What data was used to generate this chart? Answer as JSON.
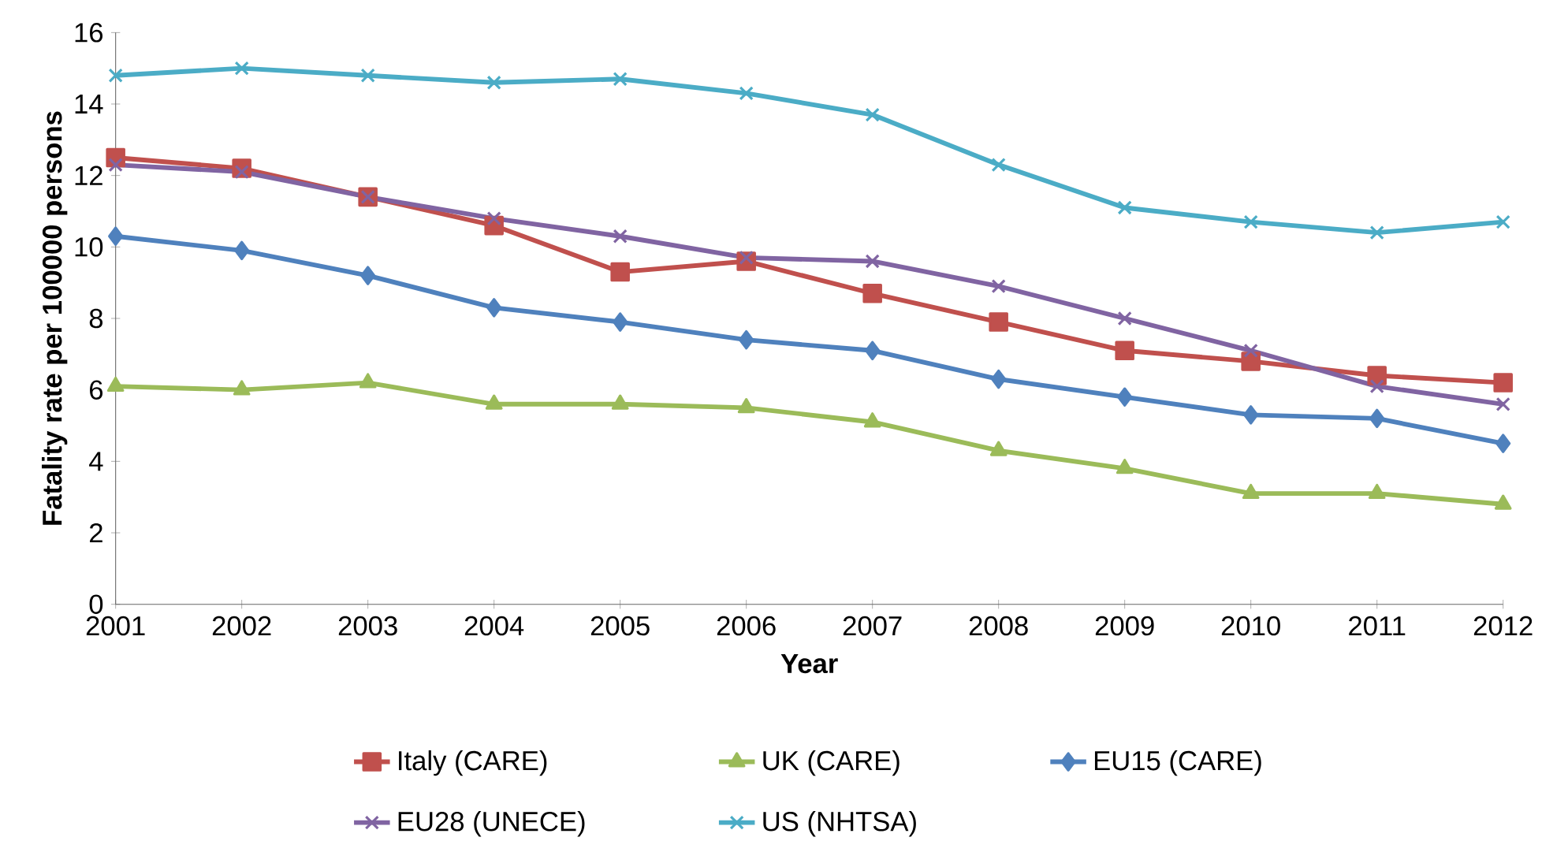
{
  "chart_data": {
    "type": "line",
    "xlabel": "Year",
    "ylabel": "Fatality rate per 100000 persons",
    "x": [
      2001,
      2002,
      2003,
      2004,
      2005,
      2006,
      2007,
      2008,
      2009,
      2010,
      2011,
      2012
    ],
    "xlim": [
      2001,
      2012
    ],
    "xticks": [
      2001,
      2002,
      2003,
      2004,
      2005,
      2006,
      2007,
      2008,
      2009,
      2010,
      2011,
      2012
    ],
    "ylim": [
      0,
      16
    ],
    "yticks": [
      0,
      2,
      4,
      6,
      8,
      10,
      12,
      14,
      16
    ],
    "grid": false,
    "legend": "bottom",
    "series": [
      {
        "name": "Italy (CARE)",
        "color": "#c0504d",
        "marker": "square",
        "values": [
          12.5,
          12.2,
          11.4,
          10.6,
          9.3,
          9.6,
          8.7,
          7.9,
          7.1,
          6.8,
          6.4,
          6.2
        ]
      },
      {
        "name": "UK (CARE)",
        "color": "#9bbb59",
        "marker": "triangle",
        "values": [
          6.1,
          6.0,
          6.2,
          5.6,
          5.6,
          5.5,
          5.1,
          4.3,
          3.8,
          3.1,
          3.1,
          2.8
        ]
      },
      {
        "name": "EU15 (CARE)",
        "color": "#4f81bd",
        "marker": "diamond",
        "values": [
          10.3,
          9.9,
          9.2,
          8.3,
          7.9,
          7.4,
          7.1,
          6.3,
          5.8,
          5.3,
          5.2,
          4.5
        ]
      },
      {
        "name": "EU28 (UNECE)",
        "color": "#8064a2",
        "marker": "cross",
        "values": [
          12.3,
          12.1,
          11.4,
          10.8,
          10.3,
          9.7,
          9.6,
          8.9,
          8.0,
          7.1,
          6.1,
          5.6
        ]
      },
      {
        "name": "US (NHTSA)",
        "color": "#4bacc6",
        "marker": "cross",
        "line_style": "solid",
        "values": [
          14.8,
          15.0,
          14.8,
          14.6,
          14.7,
          14.3,
          13.7,
          12.3,
          11.1,
          10.7,
          10.4,
          10.7
        ]
      }
    ]
  }
}
